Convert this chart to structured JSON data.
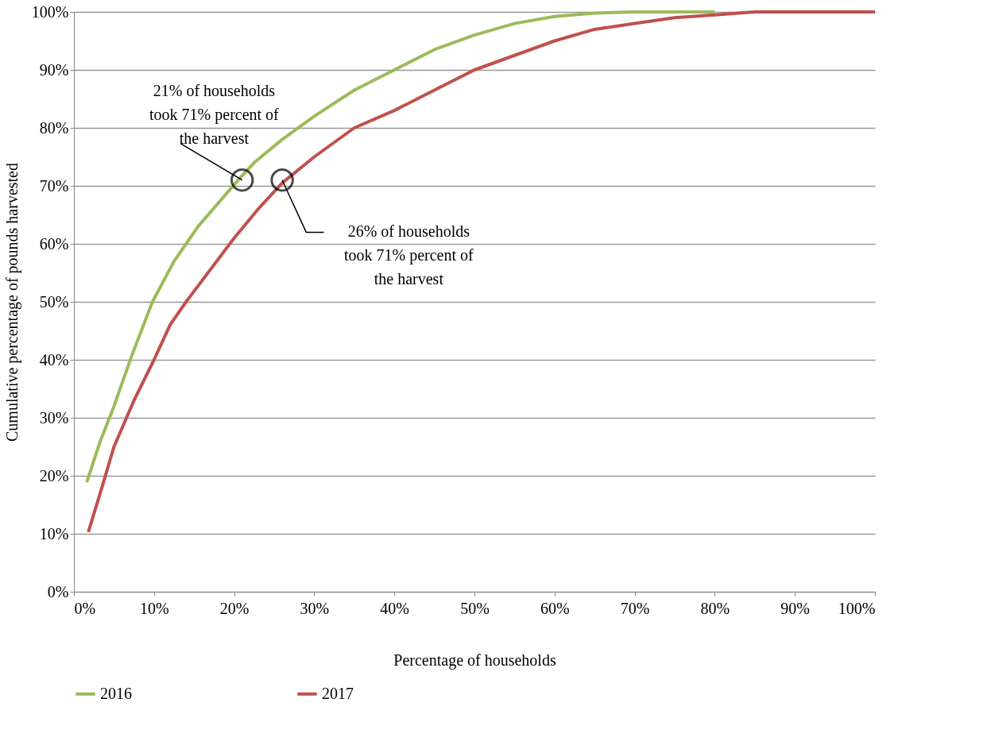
{
  "chart_data": {
    "type": "line",
    "xlabel": "Percentage of households",
    "ylabel": "Cumulative percentage of pounds harvested",
    "xlim": [
      0,
      100
    ],
    "ylim": [
      0,
      100
    ],
    "xticks": [
      {
        "value": 0,
        "label": "0%"
      },
      {
        "value": 10,
        "label": "10%"
      },
      {
        "value": 20,
        "label": "20%"
      },
      {
        "value": 30,
        "label": "30%"
      },
      {
        "value": 40,
        "label": "40%"
      },
      {
        "value": 50,
        "label": "50%"
      },
      {
        "value": 60,
        "label": "60%"
      },
      {
        "value": 70,
        "label": "70%"
      },
      {
        "value": 80,
        "label": "80%"
      },
      {
        "value": 90,
        "label": "90%"
      },
      {
        "value": 100,
        "label": "100%"
      }
    ],
    "yticks": [
      {
        "value": 0,
        "label": "0%"
      },
      {
        "value": 10,
        "label": "10%"
      },
      {
        "value": 20,
        "label": "20%"
      },
      {
        "value": 30,
        "label": "30%"
      },
      {
        "value": 40,
        "label": "40%"
      },
      {
        "value": 50,
        "label": "50%"
      },
      {
        "value": 60,
        "label": "60%"
      },
      {
        "value": 70,
        "label": "70%"
      },
      {
        "value": 80,
        "label": "80%"
      },
      {
        "value": 90,
        "label": "90%"
      },
      {
        "value": 100,
        "label": "100%"
      }
    ],
    "grid": "y",
    "legend": "bottom",
    "marker": "none",
    "line_style": "solid",
    "series": [
      {
        "name": "2016",
        "color": "#9bbb59",
        "x": [
          1.6,
          3.3,
          5,
          7.3,
          9.8,
          12.5,
          15.5,
          18,
          20.5,
          22.5,
          26,
          30,
          35,
          40,
          45,
          50,
          55,
          60,
          65,
          70,
          80
        ],
        "values": [
          18.9,
          26,
          32,
          41,
          50,
          57,
          63,
          67,
          71,
          74,
          78,
          82,
          86.5,
          90,
          93.5,
          96,
          98,
          99.2,
          99.8,
          100,
          100
        ]
      },
      {
        "name": "2017",
        "color": "#c0504d",
        "x": [
          1.8,
          3.5,
          5,
          7.5,
          10,
          12,
          14,
          17,
          20,
          23,
          26,
          30,
          35,
          40,
          45,
          50,
          55,
          60,
          65,
          70,
          75,
          80,
          85,
          90,
          100
        ],
        "values": [
          10.3,
          18,
          25,
          33,
          40,
          46,
          50,
          55.5,
          61,
          66,
          70.5,
          75,
          80,
          83,
          86.5,
          90,
          92.5,
          95,
          97,
          98,
          99,
          99.5,
          100,
          100,
          100
        ]
      }
    ],
    "annotations": [
      {
        "text": "21% of households\ntook 71% percent of\nthe harvest",
        "x": 21,
        "y": 71
      },
      {
        "text": "26% of households\ntook 71% percent of\nthe harvest",
        "x": 26,
        "y": 71
      }
    ]
  }
}
